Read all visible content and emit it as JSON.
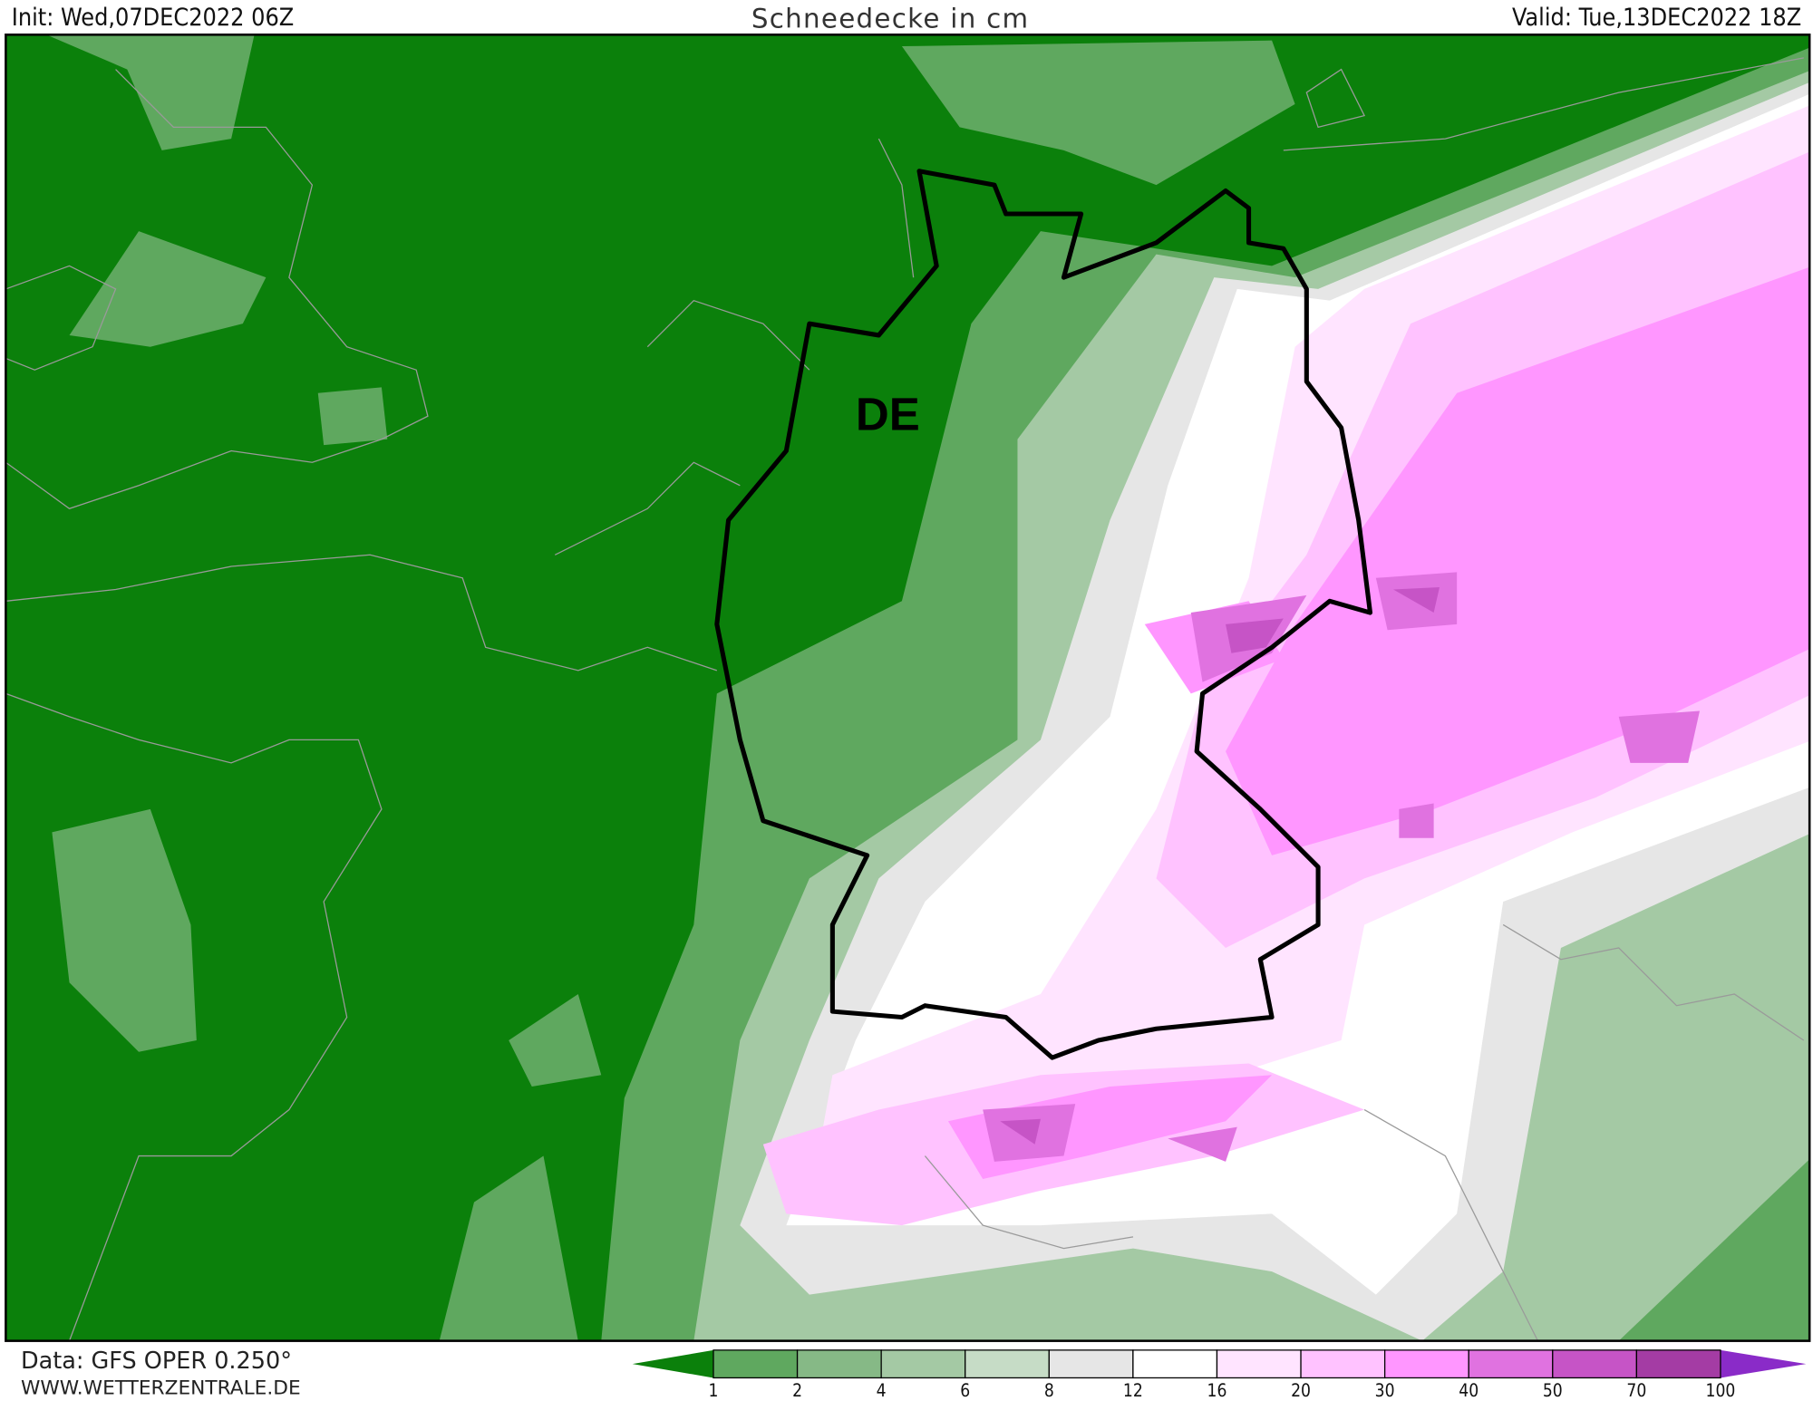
{
  "header": {
    "init": "Init: Wed,07DEC2022 06Z",
    "title": "Schneedecke in cm",
    "valid": "Valid: Tue,13DEC2022 18Z"
  },
  "map": {
    "country_label": "DE",
    "background_color": "#0b800b",
    "border_color": "#000000"
  },
  "footer": {
    "data_source": "Data: GFS OPER 0.250°",
    "website": "WWW.WETTERZENTRALE.DE"
  },
  "legend": {
    "unit": "cm",
    "low_arrow_color": "#0b800b",
    "high_arrow_color": "#8a2bc8",
    "ticks": [
      "1",
      "2",
      "4",
      "6",
      "8",
      "12",
      "16",
      "20",
      "30",
      "40",
      "50",
      "70",
      "100"
    ],
    "colors": [
      "#5fa85f",
      "#86b986",
      "#a4c9a4",
      "#c6dcc6",
      "#e6e6e6",
      "#ffffff",
      "#ffe4ff",
      "#ffc2ff",
      "#ff96ff",
      "#e072e0",
      "#c654c6",
      "#a43ca4"
    ]
  }
}
